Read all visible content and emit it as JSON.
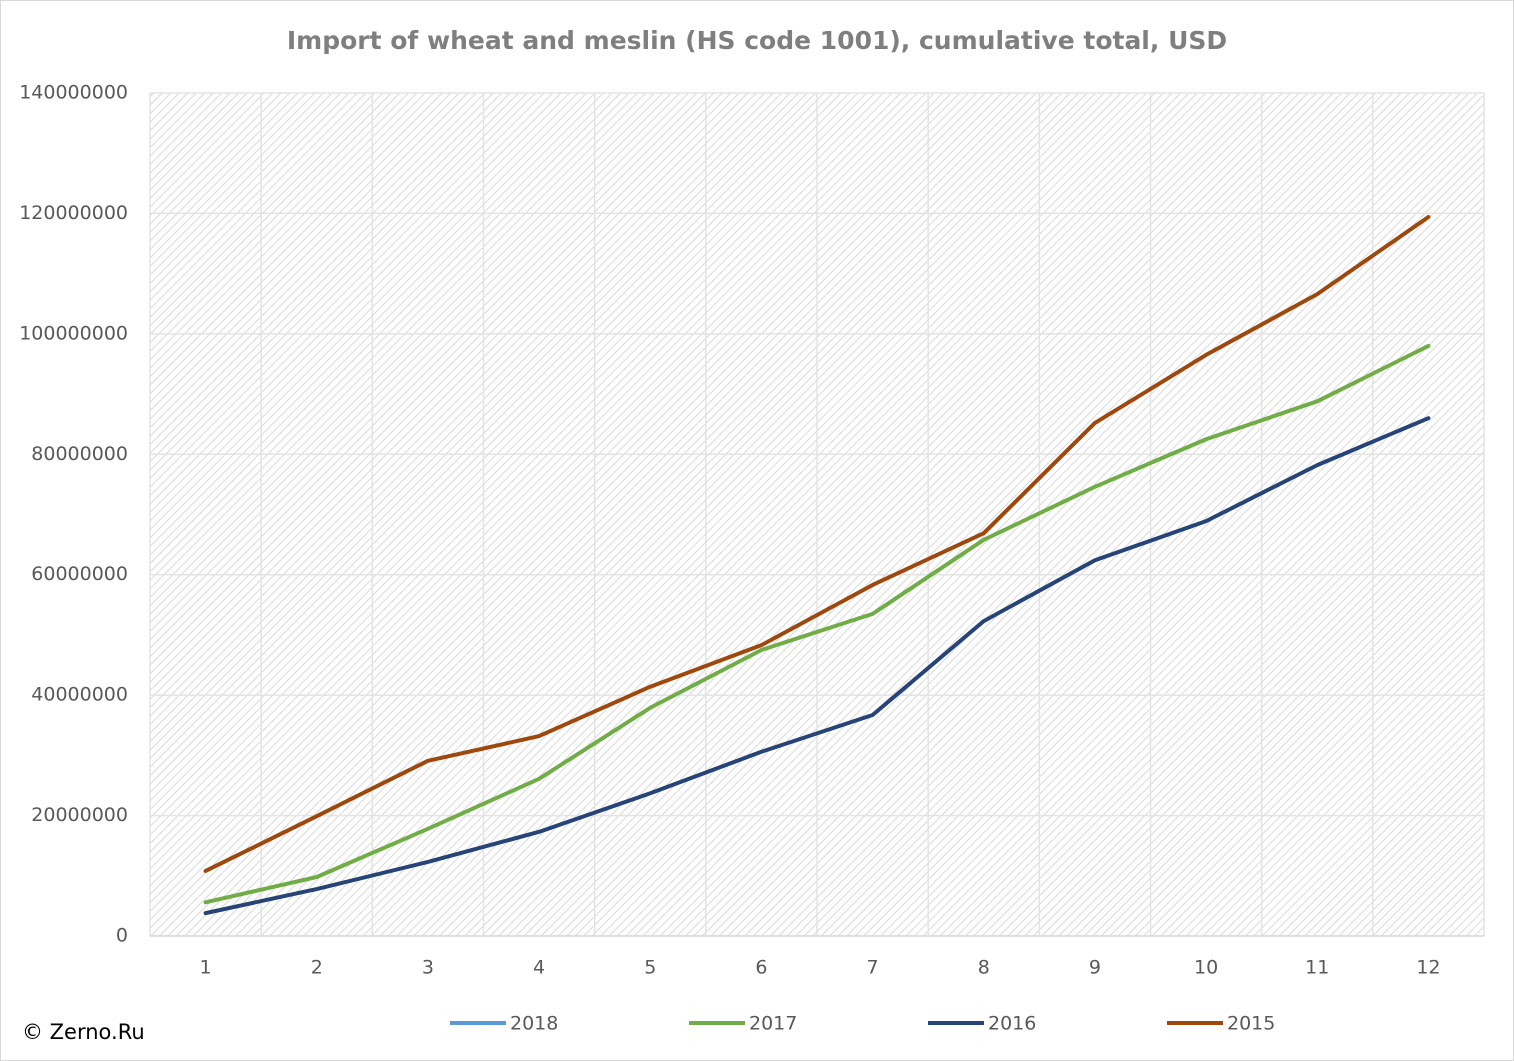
{
  "chart_data": {
    "type": "line",
    "title": "Import of wheat and meslin (HS code 1001), cumulative total, USD",
    "source": "© Zerno.Ru",
    "categories": [
      "1",
      "2",
      "3",
      "4",
      "5",
      "6",
      "7",
      "8",
      "9",
      "10",
      "11",
      "12"
    ],
    "series": [
      {
        "name": "2018",
        "color": "#5b9bd5",
        "values": [
          null,
          null,
          null,
          null,
          null,
          null,
          null,
          null,
          null,
          null,
          null,
          null
        ]
      },
      {
        "name": "2017",
        "color": "#70ad47",
        "values": [
          5600000,
          9800000,
          17800000,
          26100000,
          37900000,
          47500000,
          53500000,
          65800000,
          74600000,
          82500000,
          88800000,
          98000000
        ]
      },
      {
        "name": "2016",
        "color": "#264478",
        "values": [
          3800000,
          7800000,
          12300000,
          17300000,
          23700000,
          30600000,
          36700000,
          52300000,
          62400000,
          68900000,
          78200000,
          86000000
        ]
      },
      {
        "name": "2015",
        "color": "#9e480e",
        "values": [
          10800000,
          19900000,
          29100000,
          33200000,
          41400000,
          48300000,
          58300000,
          66900000,
          85200000,
          96500000,
          106600000,
          119400000
        ]
      }
    ],
    "ylim": [
      0,
      140000000
    ],
    "yticks": [
      0,
      20000000,
      40000000,
      60000000,
      80000000,
      100000000,
      120000000,
      140000000
    ],
    "grid": true,
    "legend": "bottom"
  }
}
